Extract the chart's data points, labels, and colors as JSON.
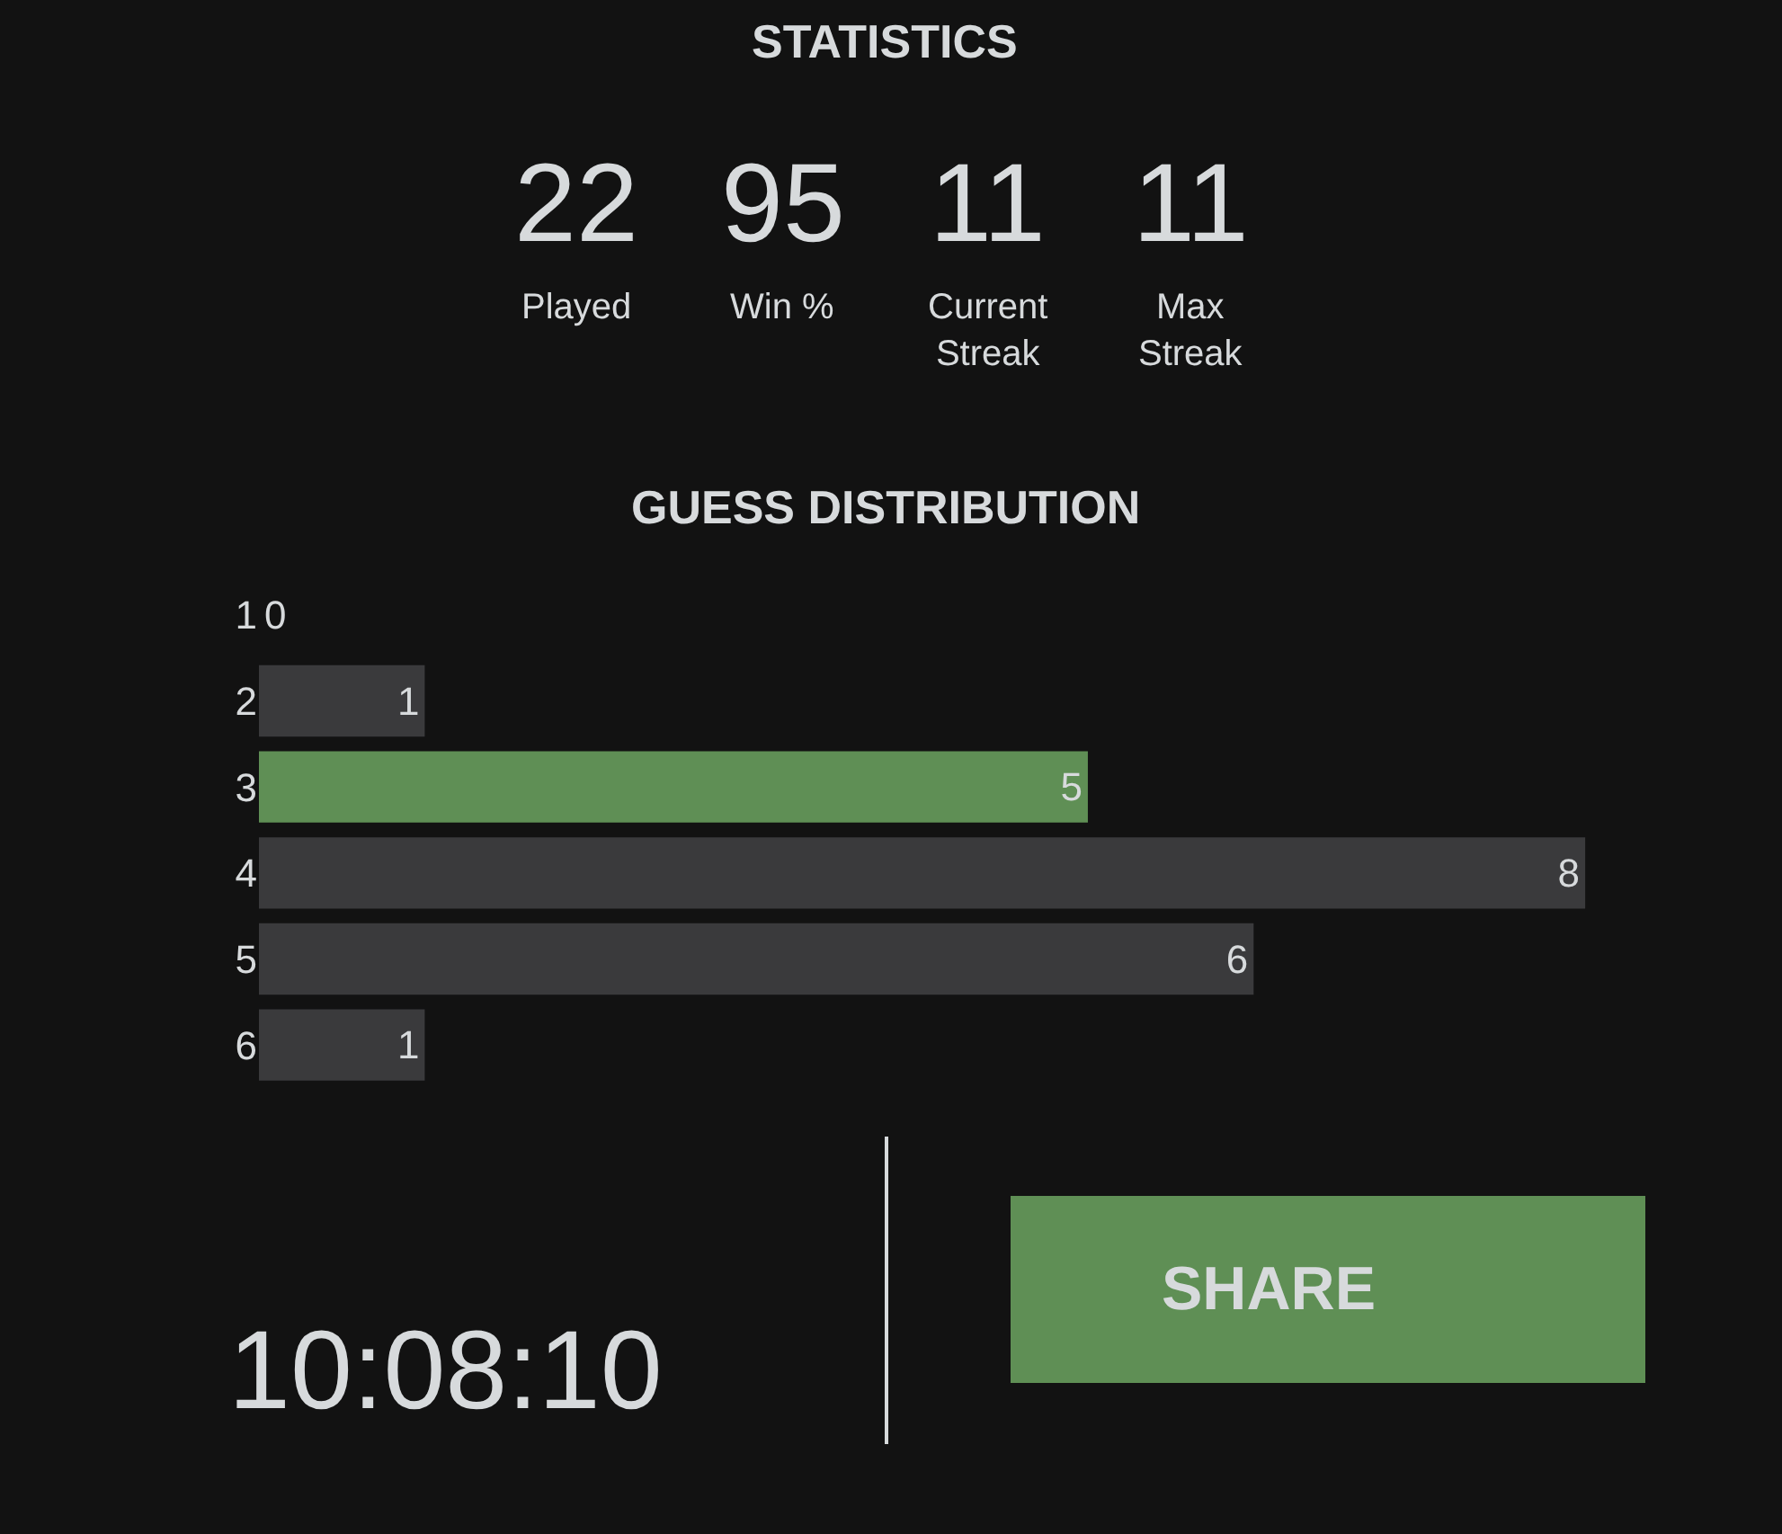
{
  "chart_data": {
    "type": "bar",
    "orientation": "horizontal",
    "title": "STATISTICS",
    "subtitle": "GUESS DISTRIBUTION",
    "categories": [
      "1",
      "2",
      "3",
      "4",
      "5",
      "6"
    ],
    "values": [
      0,
      1,
      5,
      8,
      6,
      1
    ],
    "colors": [
      "#3a3a3c",
      "#3a3a3c",
      "#5f8f55",
      "#3a3a3c",
      "#3a3a3c",
      "#3a3a3c"
    ],
    "data_labels": true,
    "annotations": [
      "22",
      "Played",
      "95",
      "Win %",
      "11",
      "Current\nStreak",
      "11",
      "Max\nStreak",
      "10:08:10",
      "SHARE"
    ]
  }
}
